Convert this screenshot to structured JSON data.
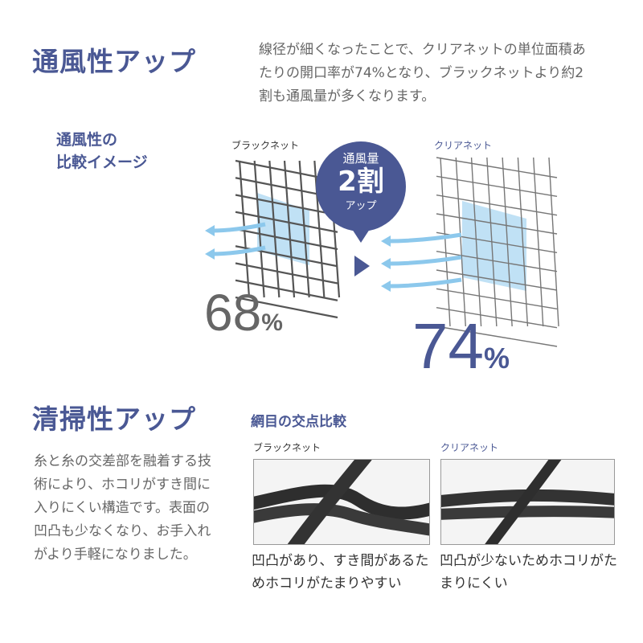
{
  "ventilation": {
    "title": "通風性アップ",
    "description": "線径が細くなったことで、クリアネットの単位面積あたりの開口率が74%となり、ブラックネットより約2割も通風量が多くなります。",
    "comparison_heading_line1": "通風性の",
    "comparison_heading_line2": "比較イメージ",
    "black_net_label": "ブラックネット",
    "clear_net_label": "クリアネット",
    "black_net_value": "68",
    "clear_net_value": "74",
    "percent_sign": "%",
    "badge": {
      "line1": "通風量",
      "line2": "2割",
      "line3": "アップ"
    },
    "colors": {
      "accent": "#4a5894",
      "airflow": "#8cc8ec",
      "black_net": "#555555",
      "clear_net": "#777777"
    }
  },
  "cleaning": {
    "title": "清掃性アップ",
    "description": "糸と糸の交差部を融着する技術により、ホコリがすき間に入りにくい構造です。表面の凹凸も少なくなり、お手入れがより手軽になりました。",
    "comparison_heading": "網目の交点比較",
    "black_net_label": "ブラックネット",
    "clear_net_label": "クリアネット",
    "black_net_caption": "凹凸があり、すき間があるためホコリがたまりやすい",
    "clear_net_caption": "凹凸が少ないためホコリがたまりにくい"
  }
}
